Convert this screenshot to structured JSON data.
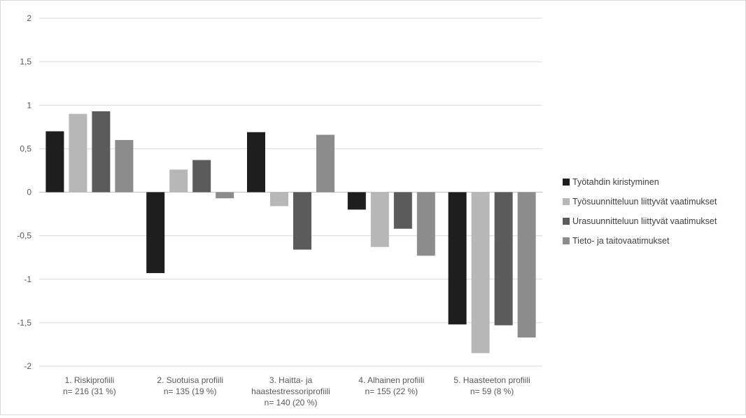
{
  "chart_data": {
    "type": "bar",
    "categories": [
      [
        "1. Riskiprofiili",
        "n= 216 (31 %)"
      ],
      [
        "2. Suotuisa profiili",
        "n= 135 (19 %)"
      ],
      [
        "3. Haitta- ja",
        "haastestressoriprofiili",
        "n= 140 (20 %)"
      ],
      [
        "4. Alhainen profiili",
        "n= 155 (22 %)"
      ],
      [
        "5. Haasteeton profiili",
        "n= 59 (8 %)"
      ]
    ],
    "series": [
      {
        "name": "Työtahdin kiristyminen",
        "color": "#1e1e1e",
        "values": [
          0.7,
          -0.93,
          0.69,
          -0.2,
          -1.52
        ]
      },
      {
        "name": "Työsuunnitteluun liittyvät vaatimukset",
        "color": "#b7b7b7",
        "values": [
          0.9,
          0.26,
          -0.16,
          -0.63,
          -1.85
        ]
      },
      {
        "name": "Urasuunnitteluun liittyvät vaatimukset",
        "color": "#5b5b5b",
        "values": [
          0.93,
          0.37,
          -0.66,
          -0.42,
          -1.53
        ]
      },
      {
        "name": "Tieto- ja taitovaatimukset",
        "color": "#8c8c8c",
        "values": [
          0.6,
          -0.07,
          0.66,
          -0.73,
          -1.67
        ]
      }
    ],
    "y_ticks": [
      "2",
      "1,5",
      "1",
      "0,5",
      "0",
      "-0,5",
      "-1",
      "-1,5",
      "-2"
    ],
    "ylim": [
      -2,
      2
    ],
    "grid": true,
    "legend_position": "right",
    "title": "",
    "xlabel": "",
    "ylabel": ""
  }
}
